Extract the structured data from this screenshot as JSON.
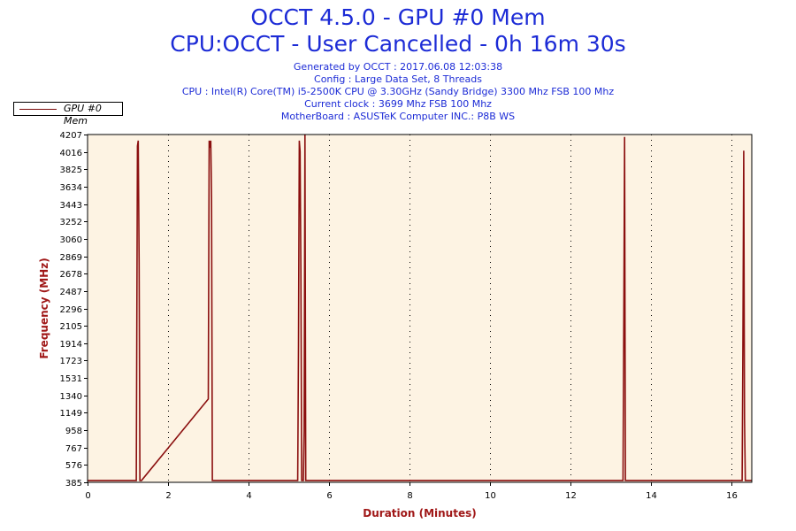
{
  "chart_data": {
    "type": "line",
    "title": "OCCT 4.5.0 - GPU #0 Mem",
    "subtitle": "CPU:OCCT - User Cancelled - 0h 16m 30s",
    "info_lines": [
      "Generated by OCCT : 2017.06.08 12:03:38",
      "Config : Large Data Set, 8 Threads",
      "CPU : Intel(R) Core(TM) i5-2500K CPU @ 3.30GHz (Sandy Bridge) 3300 Mhz FSB 100 Mhz",
      "Current clock : 3699 Mhz FSB 100 Mhz",
      "MotherBoard : ASUSTeK Computer INC.: P8B WS"
    ],
    "xlabel": "Duration (Minutes)",
    "ylabel": "Frequency (MHz)",
    "xlim": [
      0,
      16.5
    ],
    "ylim": [
      385,
      4207
    ],
    "x_ticks": [
      "0",
      "2",
      "4",
      "6",
      "8",
      "10",
      "12",
      "14",
      "16"
    ],
    "y_ticks": [
      "385",
      "576",
      "767",
      "958",
      "1149",
      "1340",
      "1531",
      "1723",
      "1914",
      "2105",
      "2296",
      "2487",
      "2678",
      "2869",
      "3060",
      "3252",
      "3443",
      "3634",
      "3825",
      "4016",
      "4207"
    ],
    "grid": true,
    "legend_position": "top-left",
    "series": [
      {
        "name": "GPU #0 Mem",
        "color": "#8b0f0f",
        "x": [
          0,
          1.21,
          1.24,
          1.26,
          1.28,
          1.3,
          1.32,
          1.34,
          3.0,
          3.02,
          3.04,
          3.06,
          3.08,
          3.1,
          3.13,
          5.22,
          5.24,
          5.26,
          5.28,
          5.3,
          5.32,
          5.36,
          5.38,
          5.4,
          5.42,
          5.44,
          13.3,
          13.32,
          13.34,
          13.36,
          13.38,
          16.26,
          16.28,
          16.3,
          16.32,
          16.34,
          16.5
        ],
        "y": [
          405,
          405,
          4080,
          4140,
          2800,
          405,
          405,
          405,
          1300,
          4140,
          4060,
          4140,
          3500,
          405,
          405,
          405,
          1900,
          4140,
          4020,
          2700,
          405,
          405,
          950,
          4207,
          405,
          405,
          405,
          2180,
          4180,
          405,
          405,
          405,
          1970,
          4030,
          1080,
          405,
          405
        ]
      }
    ]
  }
}
